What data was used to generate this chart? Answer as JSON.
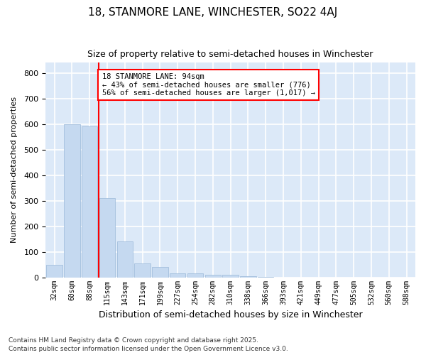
{
  "title1": "18, STANMORE LANE, WINCHESTER, SO22 4AJ",
  "title2": "Size of property relative to semi-detached houses in Winchester",
  "xlabel": "Distribution of semi-detached houses by size in Winchester",
  "ylabel": "Number of semi-detached properties",
  "categories": [
    "32sqm",
    "60sqm",
    "88sqm",
    "115sqm",
    "143sqm",
    "171sqm",
    "199sqm",
    "227sqm",
    "254sqm",
    "282sqm",
    "310sqm",
    "338sqm",
    "366sqm",
    "393sqm",
    "421sqm",
    "449sqm",
    "477sqm",
    "505sqm",
    "532sqm",
    "560sqm",
    "588sqm"
  ],
  "values": [
    50,
    600,
    590,
    310,
    140,
    55,
    42,
    17,
    17,
    10,
    10,
    5,
    3,
    0,
    0,
    0,
    0,
    0,
    0,
    0,
    0
  ],
  "bar_color": "#c5d9f0",
  "bar_edge_color": "#9ab8d8",
  "red_line_x": 2.5,
  "property_label": "18 STANMORE LANE: 94sqm",
  "smaller_pct": "43% of semi-detached houses are smaller (776)",
  "larger_pct": "56% of semi-detached houses are larger (1,017)",
  "ylim": [
    0,
    840
  ],
  "yticks": [
    0,
    100,
    200,
    300,
    400,
    500,
    600,
    700,
    800
  ],
  "background_color": "#dce9f8",
  "grid_color": "#ffffff",
  "title1_fontsize": 11,
  "title2_fontsize": 9,
  "footnote1": "Contains HM Land Registry data © Crown copyright and database right 2025.",
  "footnote2": "Contains public sector information licensed under the Open Government Licence v3.0."
}
